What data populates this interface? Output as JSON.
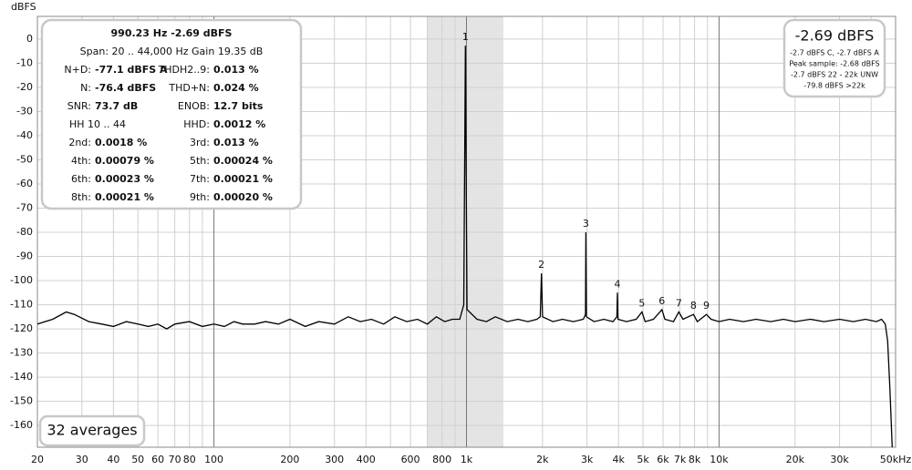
{
  "chart_data": {
    "type": "line",
    "y_label": "dBFS",
    "xscale": "log",
    "grid": true,
    "xlim": [
      20,
      50000
    ],
    "ylim": [
      -169,
      9.4
    ],
    "yticks": [
      0,
      -10,
      -20,
      -30,
      -40,
      -50,
      -60,
      -70,
      -80,
      -90,
      -100,
      -110,
      -120,
      -130,
      -140,
      -150,
      -160
    ],
    "xticks": [
      20,
      30,
      40,
      50,
      60,
      70,
      80,
      100,
      200,
      300,
      400,
      600,
      800,
      {
        "value": 1000,
        "label": "1k"
      },
      {
        "value": 2000,
        "label": "2k"
      },
      {
        "value": 3000,
        "label": "3k"
      },
      {
        "value": 4000,
        "label": "4k"
      },
      {
        "value": 5000,
        "label": "5k"
      },
      {
        "value": 6000,
        "label": "6k"
      },
      {
        "value": 7000,
        "label": "7k"
      },
      {
        "value": 8000,
        "label": "8k"
      },
      {
        "value": 10000,
        "label": "10k"
      },
      {
        "value": 20000,
        "label": "20k"
      },
      {
        "value": 30000,
        "label": "30k"
      },
      {
        "value": 50000,
        "label": "50kHz"
      }
    ],
    "xminor": [
      90,
      500,
      700,
      900,
      9000,
      40000
    ],
    "shade": [
      700,
      1400
    ],
    "x": [
      20,
      23,
      26,
      28,
      32,
      36,
      40,
      45,
      50,
      55,
      60,
      65,
      70,
      80,
      90,
      100,
      110,
      120,
      130,
      145,
      160,
      180,
      200,
      230,
      260,
      300,
      340,
      380,
      420,
      470,
      520,
      580,
      640,
      700,
      760,
      820,
      880,
      940,
      975,
      985,
      990,
      995,
      1005,
      1100,
      1200,
      1300,
      1450,
      1600,
      1750,
      1900,
      1960,
      1980,
      2000,
      2200,
      2400,
      2650,
      2900,
      2960,
      2970,
      2985,
      3200,
      3500,
      3800,
      3940,
      3960,
      3980,
      4300,
      4700,
      4950,
      5100,
      5500,
      5940,
      6100,
      6600,
      6930,
      7200,
      7920,
      8200,
      8910,
      9300,
      10000,
      11000,
      12500,
      14000,
      16000,
      18000,
      20000,
      23000,
      26000,
      30000,
      34000,
      38000,
      42000,
      44000,
      45500,
      46500,
      47500,
      48500
    ],
    "series": [
      {
        "color": "#000000",
        "values": [
          -118,
          -116,
          -113,
          -114,
          -117,
          -118,
          -119,
          -117,
          -118,
          -119,
          -118,
          -120,
          -118,
          -117,
          -119,
          -118,
          -119,
          -117,
          -118,
          -118,
          -117,
          -118,
          -116,
          -119,
          -117,
          -118,
          -115,
          -117,
          -116,
          -118,
          -115,
          -117,
          -116,
          -118,
          -115,
          -117,
          -116,
          -116,
          -110,
          -40,
          -2.69,
          -40,
          -112,
          -116,
          -117,
          -115,
          -117,
          -116,
          -117,
          -116,
          -115,
          -97,
          -115,
          -117,
          -116,
          -117,
          -116,
          -114,
          -80,
          -115,
          -117,
          -116,
          -117,
          -115,
          -105,
          -116,
          -117,
          -116,
          -113,
          -117,
          -116,
          -112,
          -116,
          -117,
          -113,
          -116,
          -114,
          -117,
          -114,
          -116,
          -117,
          -116,
          -117,
          -116,
          -117,
          -116,
          -117,
          -116,
          -117,
          -116,
          -117,
          -116,
          -117,
          -116,
          -118,
          -125,
          -145,
          -169
        ]
      }
    ],
    "harmonics": [
      {
        "label": "1",
        "x": 990,
        "y": -2.69
      },
      {
        "label": "2",
        "x": 1980,
        "y": -97
      },
      {
        "label": "3",
        "x": 2970,
        "y": -80
      },
      {
        "label": "4",
        "x": 3960,
        "y": -105
      },
      {
        "label": "5",
        "x": 4950,
        "y": -113
      },
      {
        "label": "6",
        "x": 5940,
        "y": -112
      },
      {
        "label": "7",
        "x": 6930,
        "y": -113
      },
      {
        "label": "8",
        "x": 7920,
        "y": -114
      },
      {
        "label": "9",
        "x": 8910,
        "y": -114
      }
    ]
  },
  "info_panel": {
    "headline": "990.23 Hz  -2.69 dBFS",
    "span": "Span: 20 .. 44,000 Hz   Gain 19.35 dB",
    "rows": [
      [
        {
          "label": "N+D:",
          "value": "-77.1 dBFS A"
        },
        {
          "label": "THDH2..9:",
          "value": "0.013 %"
        }
      ],
      [
        {
          "label": "N:",
          "value": "-76.4 dBFS"
        },
        {
          "label": "THD+N:",
          "value": "0.024 %"
        }
      ],
      [
        {
          "label": "SNR:",
          "value": "73.7 dB"
        },
        {
          "label": "ENOB:",
          "value": "12.7 bits"
        }
      ],
      [
        {
          "label": "HH 10 .. 44"
        },
        {
          "label": "HHD:",
          "value": "0.0012 %"
        }
      ],
      [
        {
          "label": "2nd:",
          "value": "0.0018 %"
        },
        {
          "label": "3rd:",
          "value": "0.013 %"
        }
      ],
      [
        {
          "label": "4th:",
          "value": "0.00079 %"
        },
        {
          "label": "5th:",
          "value": "0.00024 %"
        }
      ],
      [
        {
          "label": "6th:",
          "value": "0.00023 %"
        },
        {
          "label": "7th:",
          "value": "0.00021 %"
        }
      ],
      [
        {
          "label": "8th:",
          "value": "0.00021 %"
        },
        {
          "label": "9th:",
          "value": "0.00020 %"
        }
      ]
    ]
  },
  "level_panel": {
    "level": "-2.69 dBFS",
    "lines": [
      "-2.7 dBFS C, -2.7 dBFS A",
      "Peak sample: -2.68 dBFS",
      "-2.7 dBFS 22 - 22k UNW",
      "-79.8 dBFS >22k"
    ]
  },
  "averages": "32 averages"
}
